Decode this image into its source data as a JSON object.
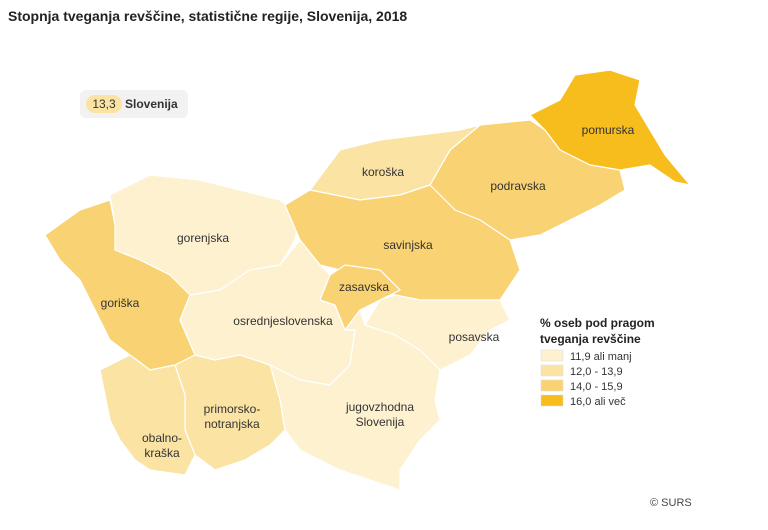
{
  "header": {
    "title": "Stopnja tveganja revščine, statistične regije, Slovenija, 2018"
  },
  "badge": {
    "value": "13,3",
    "label": "Slovenija",
    "color": "#fbe3a4"
  },
  "regions": [
    {
      "label": [
        "pomurska"
      ],
      "color": "#f6bd1d"
    },
    {
      "label": [
        "podravska"
      ],
      "color": "#f9d373"
    },
    {
      "label": [
        "koroška"
      ],
      "color": "#fbe3a4"
    },
    {
      "label": [
        "gorenjska"
      ],
      "color": "#fdf1d0"
    },
    {
      "label": [
        "goriška"
      ],
      "color": "#f9d373"
    },
    {
      "label": [
        "savinjska"
      ],
      "color": "#f9d373"
    },
    {
      "label": [
        "osrednjeslovenska"
      ],
      "color": "#fdf1d0"
    },
    {
      "label": [
        "zasavska"
      ],
      "color": "#f9d373"
    },
    {
      "label": [
        "posavska"
      ],
      "color": "#fdf1d0"
    },
    {
      "label": [
        "jugovzhodna",
        "Slovenija"
      ],
      "color": "#fdf1d0"
    },
    {
      "label": [
        "primorsko-",
        "notranjska"
      ],
      "color": "#fbe3a4"
    },
    {
      "label": [
        "obalno-",
        "kraška"
      ],
      "color": "#fbe3a4"
    }
  ],
  "legend": {
    "title": [
      "% oseb pod pragom",
      "tveganja revščine"
    ],
    "items": [
      {
        "label": "11,9 ali manj",
        "color": "#fdf1d0"
      },
      {
        "label": "12,0 - 13,9",
        "color": "#fbe3a4"
      },
      {
        "label": "14,0 - 15,9",
        "color": "#f9d373"
      },
      {
        "label": "16,0 ali več",
        "color": "#f6bd1d"
      }
    ]
  },
  "credit": "© SURS"
}
